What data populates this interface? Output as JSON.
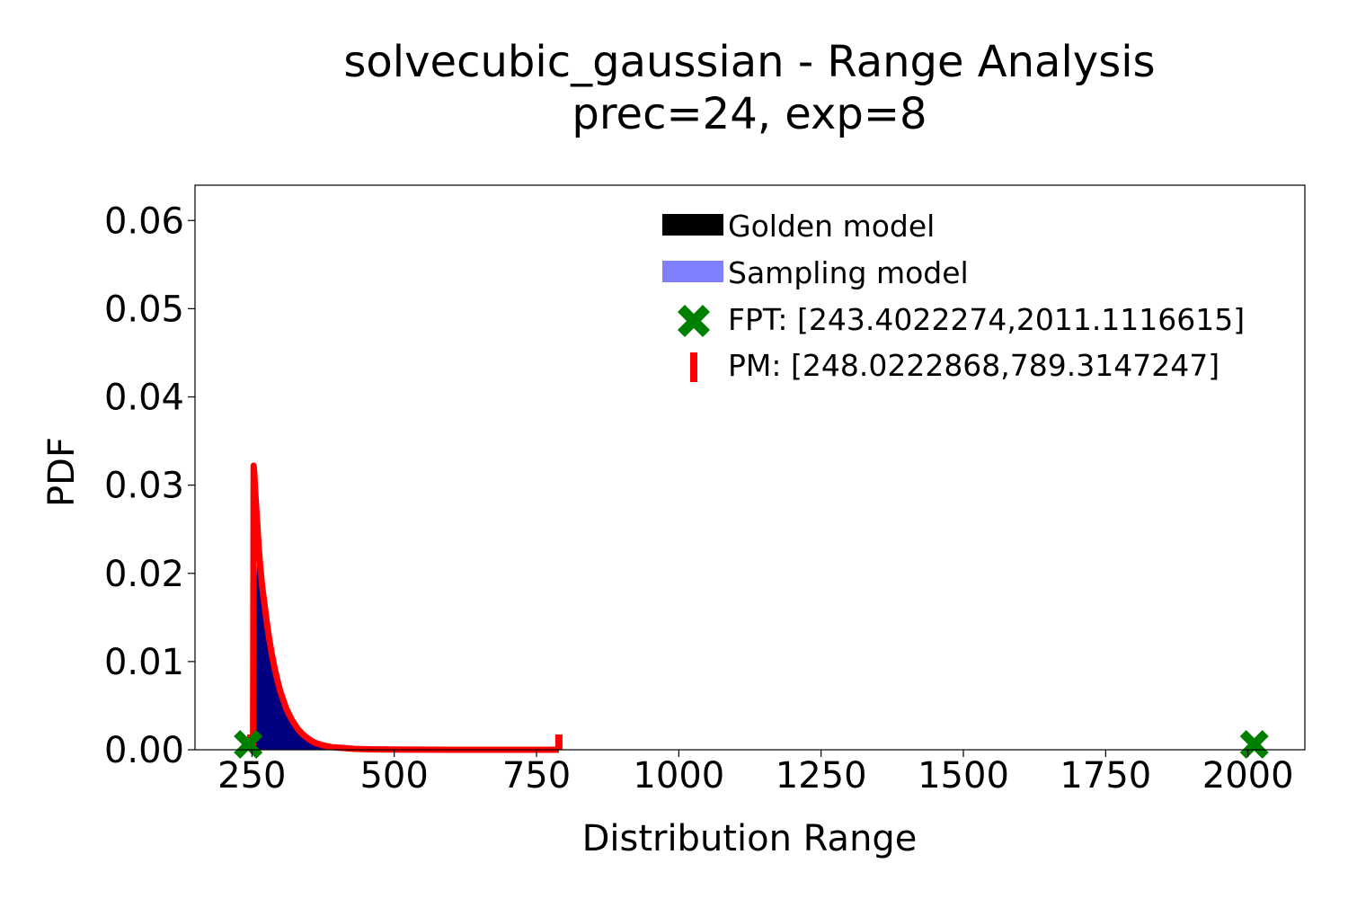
{
  "chart_data": {
    "type": "area",
    "title": "solvecubic_gaussian - Range Analysis",
    "subtitle": "prec=24, exp=8",
    "xlabel": "Distribution Range",
    "ylabel": "PDF",
    "xlim": [
      150,
      2100
    ],
    "ylim": [
      0,
      0.064
    ],
    "xticks": [
      250,
      500,
      750,
      1000,
      1250,
      1500,
      1750,
      2000
    ],
    "xtick_labels": [
      "250",
      "500",
      "750",
      "1000",
      "1250",
      "1500",
      "1750",
      "2000"
    ],
    "yticks": [
      0.0,
      0.01,
      0.02,
      0.03,
      0.04,
      0.05,
      0.06
    ],
    "ytick_labels": [
      "0.00",
      "0.01",
      "0.02",
      "0.03",
      "0.04",
      "0.05",
      "0.06"
    ],
    "grid": false,
    "legend_position": "top-right",
    "legend": [
      {
        "label": "Golden model",
        "color": "#000000",
        "marker": "patch"
      },
      {
        "label": "Sampling model",
        "color": "#8080ff",
        "marker": "patch"
      },
      {
        "label": "FPT: [243.4022274,2011.1116615]",
        "color": "#008000",
        "marker": "X"
      },
      {
        "label": "PM: [248.0222868,789.3147247]",
        "color": "#ff0000",
        "marker": "|"
      }
    ],
    "series": [
      {
        "name": "Golden model",
        "color": "#000080",
        "x": [
          254,
          256,
          258,
          260,
          262,
          265,
          268,
          272,
          276,
          280,
          285,
          290,
          295,
          300,
          310,
          320,
          330,
          340,
          350,
          360,
          375,
          390,
          410,
          430,
          460,
          500
        ],
        "y": [
          0,
          0.0125,
          0.019,
          0.024,
          0.023,
          0.021,
          0.019,
          0.017,
          0.015,
          0.013,
          0.011,
          0.0095,
          0.008,
          0.0068,
          0.0048,
          0.0034,
          0.0024,
          0.0017,
          0.0012,
          0.0008,
          0.0005,
          0.0003,
          0.0002,
          0.0001,
          5e-05,
          0
        ]
      },
      {
        "name": "PM",
        "color": "#ff0000",
        "x": [
          248.0,
          250,
          252,
          253,
          254,
          256,
          258,
          260,
          262,
          265,
          268,
          272,
          276,
          280,
          285,
          290,
          295,
          300,
          310,
          320,
          330,
          340,
          350,
          360,
          375,
          390,
          410,
          430,
          460,
          500,
          600,
          700,
          789.3
        ],
        "y": [
          0,
          0,
          0.0,
          0.0322,
          0.0315,
          0.029,
          0.027,
          0.025,
          0.0228,
          0.0205,
          0.0185,
          0.0165,
          0.0145,
          0.0127,
          0.0108,
          0.0092,
          0.0078,
          0.0066,
          0.0047,
          0.0034,
          0.0024,
          0.0017,
          0.0012,
          0.0008,
          0.0005,
          0.0003,
          0.0002,
          0.0001,
          5e-05,
          2e-05,
          0,
          0,
          0
        ]
      }
    ],
    "pm_range": [
      248.0222868,
      789.3147247
    ],
    "fpt_range": [
      243.4022274,
      2011.1116615
    ]
  }
}
